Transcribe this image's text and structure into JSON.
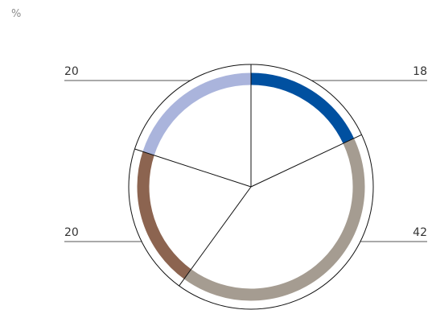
{
  "chart_data": {
    "type": "pie",
    "unit": "%",
    "slices": [
      {
        "label": "18",
        "value": 18,
        "color": "#0050a0"
      },
      {
        "label": "42",
        "value": 42,
        "color": "#a59c91"
      },
      {
        "label": "20",
        "value": 20,
        "color": "#8c6450"
      },
      {
        "label": "20",
        "value": 20,
        "color": "#aab4dc"
      }
    ],
    "legend": "none",
    "start_angle": "12 o'clock",
    "direction": "clockwise"
  }
}
